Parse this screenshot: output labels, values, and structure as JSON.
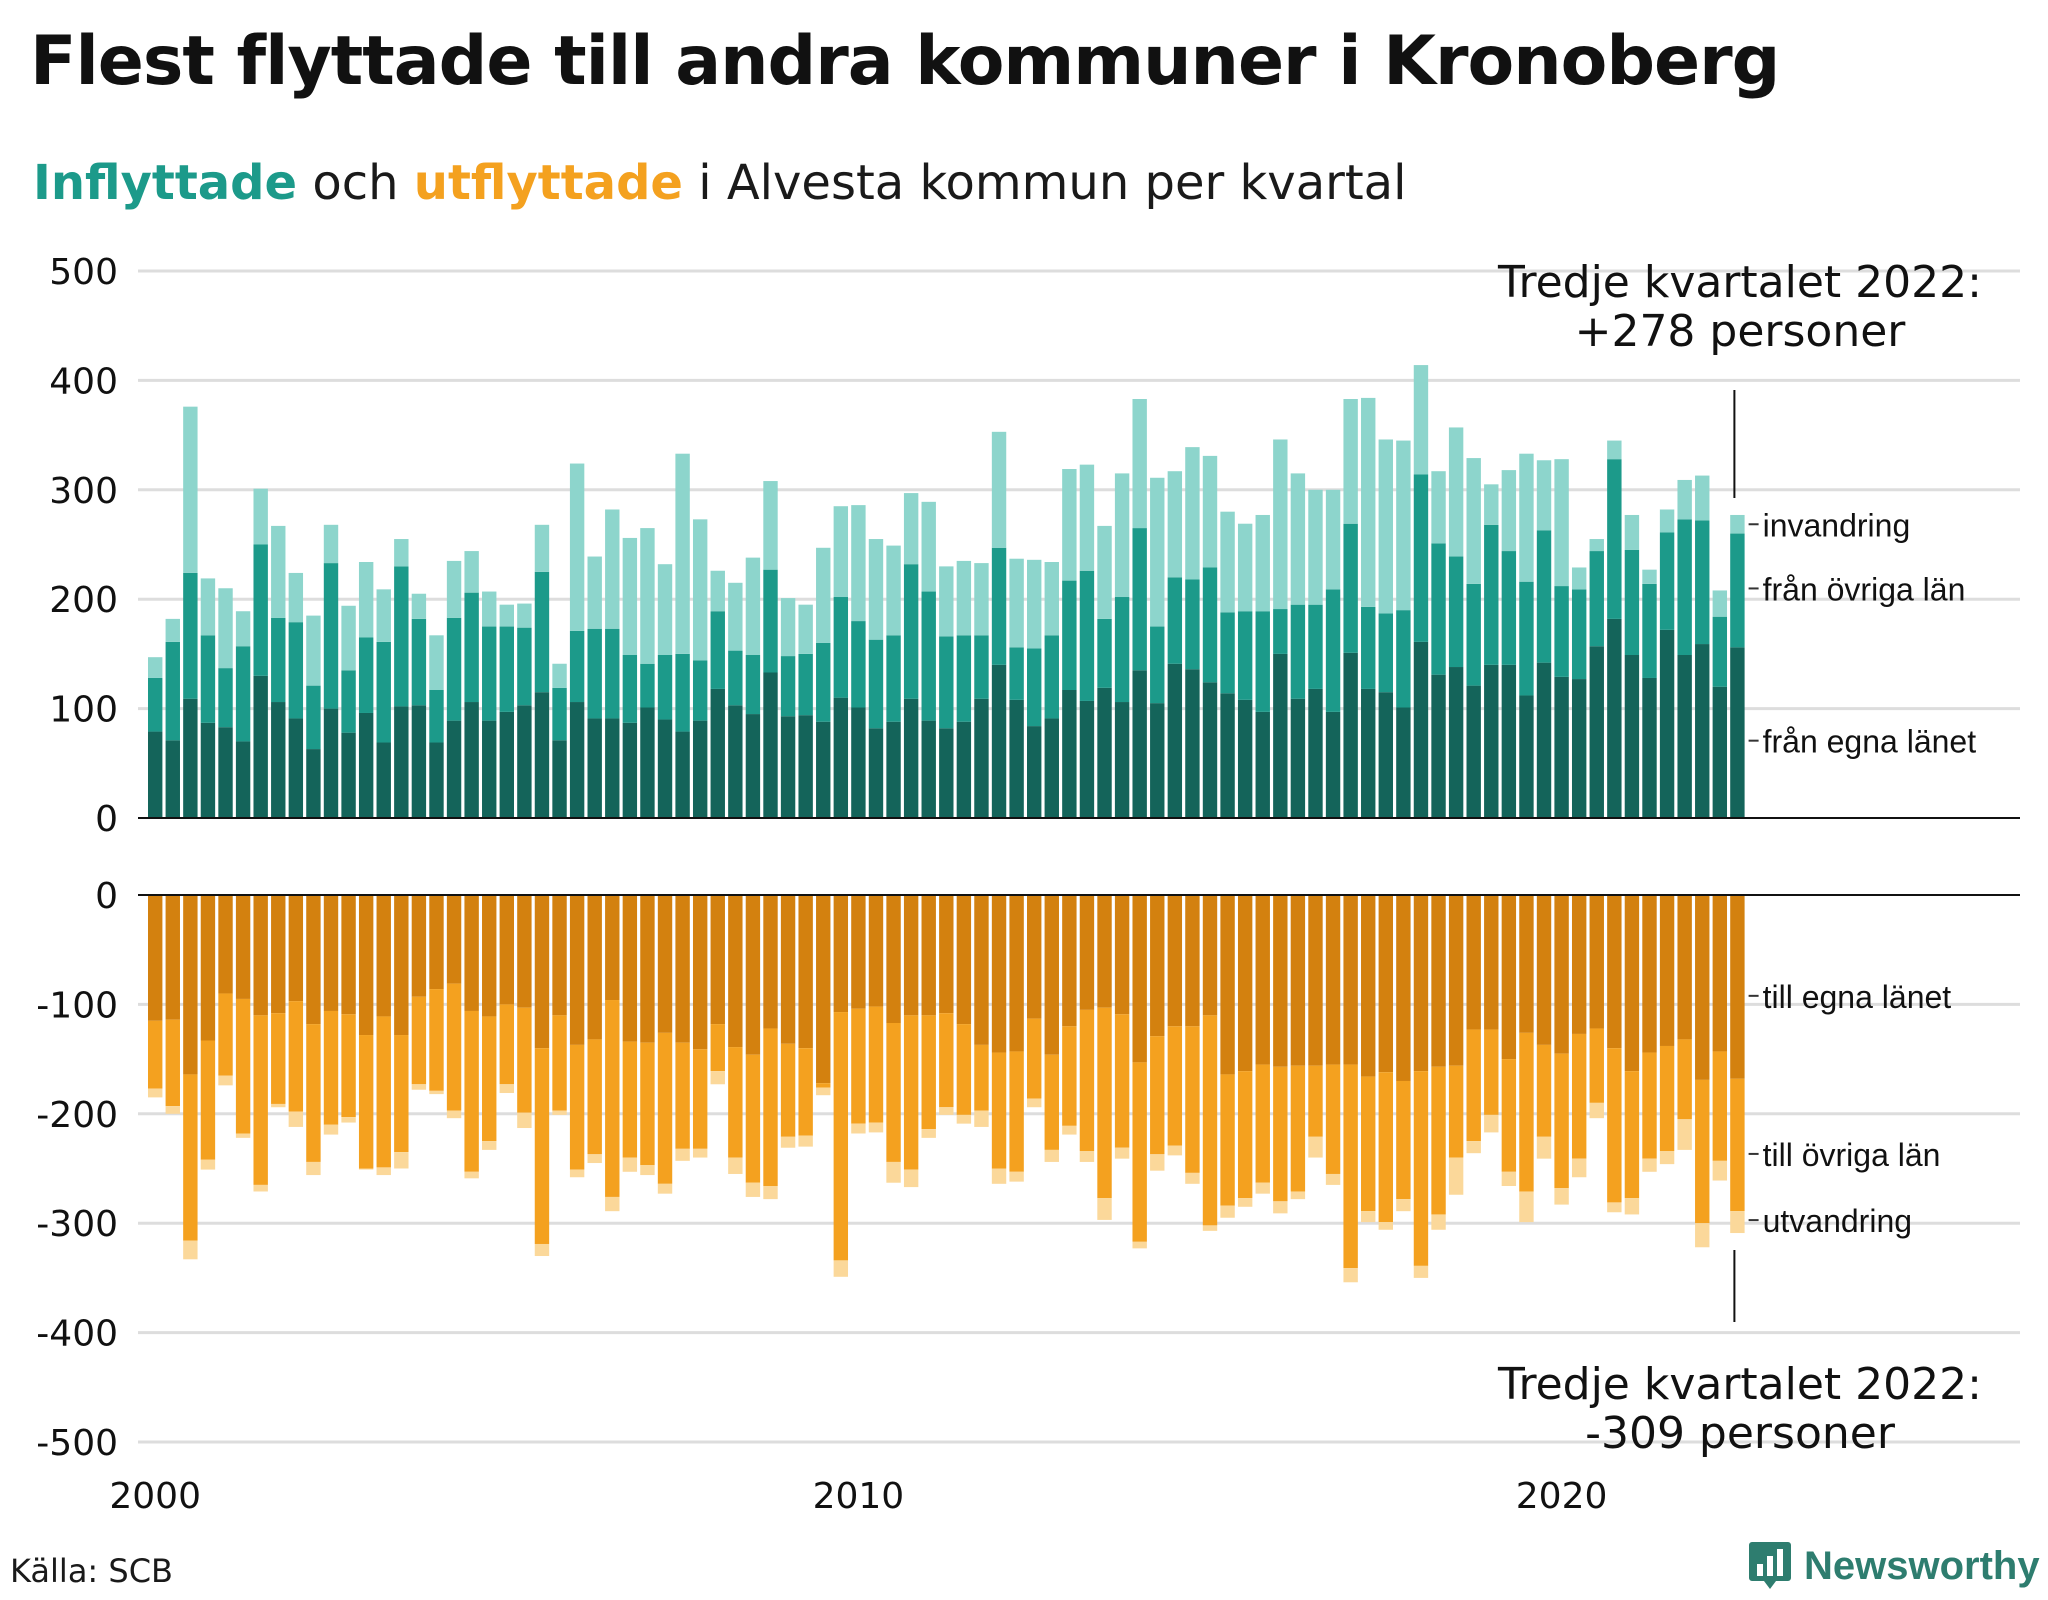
{
  "title": "Flest flyttade till andra kommuner i Kronoberg",
  "subtitle": {
    "part1": "Inflyttade",
    "part2": " och ",
    "part3": "utflyttade",
    "part4": " i Alvesta kommun per kvartal"
  },
  "source": "Källa: SCB",
  "brand": "Newsworthy",
  "colors": {
    "in_own": "#14645a",
    "in_other": "#1c9a8a",
    "in_imm": "#8dd5cc",
    "out_own": "#d3810f",
    "out_other": "#f4a11f",
    "out_emi": "#fbd89a",
    "grid": "#dddddd",
    "text": "#111111",
    "brand": "#2e7d6f"
  },
  "annotations": {
    "top_line1": "Tredje kvartalet 2022:",
    "top_line2": "+278 personer",
    "bottom_line1": "Tredje kvartalet 2022:",
    "bottom_line2": "-309 personer"
  },
  "chart_data": [
    {
      "type": "bar",
      "stacked": true,
      "x_start": "2000 Q1",
      "x_end": "2022 Q3",
      "x_ticks": [
        "2000",
        "2010",
        "2020"
      ],
      "y_ticks": [
        "500",
        "400",
        "300",
        "200",
        "100",
        "0"
      ],
      "ylim": [
        0,
        500
      ],
      "series_labels": [
        "invandring",
        "från övriga län",
        "från egna länet"
      ],
      "series": [
        {
          "name": "från egna länet",
          "values": [
            79,
            71,
            109,
            87,
            83,
            70,
            130,
            106,
            91,
            63,
            100,
            78,
            96,
            69,
            102,
            103,
            69,
            89,
            106,
            89,
            97,
            103,
            115,
            71,
            106,
            91,
            91,
            87,
            101,
            90,
            79,
            89,
            118,
            103,
            95,
            133,
            93,
            94,
            88,
            110,
            101,
            82,
            88,
            109,
            89,
            82,
            88,
            109,
            140,
            108,
            84,
            91,
            117,
            107,
            119,
            106,
            135,
            105,
            141,
            136,
            124,
            114,
            108,
            97,
            150,
            109,
            118,
            97,
            151,
            118,
            115,
            101,
            161,
            131,
            138,
            121,
            140,
            140,
            112,
            142,
            129,
            127,
            157,
            182,
            149,
            128,
            172,
            149,
            159,
            120,
            156
          ]
        },
        {
          "name": "från övriga län",
          "values": [
            49,
            90,
            115,
            80,
            54,
            87,
            120,
            77,
            88,
            58,
            133,
            57,
            69,
            92,
            128,
            79,
            48,
            94,
            100,
            86,
            78,
            71,
            110,
            48,
            65,
            82,
            82,
            62,
            40,
            59,
            71,
            55,
            71,
            50,
            54,
            94,
            55,
            56,
            72,
            92,
            79,
            81,
            79,
            123,
            118,
            84,
            79,
            58,
            107,
            48,
            71,
            76,
            100,
            119,
            63,
            96,
            130,
            70,
            79,
            82,
            105,
            74,
            81,
            92,
            41,
            86,
            77,
            112,
            118,
            75,
            72,
            89,
            153,
            120,
            101,
            93,
            128,
            104,
            104,
            121,
            83,
            82,
            87,
            146,
            96,
            86,
            89,
            124,
            113,
            64,
            104
          ]
        },
        {
          "name": "invandring",
          "values": [
            19,
            21,
            152,
            52,
            73,
            32,
            51,
            84,
            45,
            64,
            35,
            59,
            69,
            48,
            25,
            23,
            50,
            52,
            38,
            32,
            20,
            22,
            43,
            22,
            153,
            66,
            109,
            107,
            124,
            83,
            183,
            129,
            37,
            62,
            89,
            81,
            53,
            45,
            87,
            83,
            106,
            92,
            82,
            65,
            82,
            64,
            68,
            66,
            106,
            81,
            81,
            67,
            102,
            97,
            85,
            113,
            118,
            136,
            97,
            121,
            102,
            92,
            80,
            88,
            155,
            120,
            105,
            91,
            114,
            191,
            159,
            155,
            100,
            66,
            118,
            115,
            37,
            74,
            117,
            64,
            116,
            20,
            11,
            17,
            32,
            13,
            21,
            36,
            41,
            24,
            17
          ]
        }
      ]
    },
    {
      "type": "bar",
      "stacked": true,
      "x_start": "2000 Q1",
      "x_end": "2022 Q3",
      "x_ticks": [
        "2000",
        "2010",
        "2020"
      ],
      "y_ticks": [
        "0",
        "-100",
        "-200",
        "-300",
        "-400",
        "-500"
      ],
      "ylim": [
        -500,
        0
      ],
      "series_labels": [
        "till egna länet",
        "till övriga län",
        "utvandring"
      ],
      "series": [
        {
          "name": "till egna länet",
          "values": [
            -115,
            -114,
            -164,
            -133,
            -90,
            -95,
            -110,
            -108,
            -97,
            -118,
            -106,
            -109,
            -128,
            -111,
            -128,
            -93,
            -86,
            -81,
            -106,
            -111,
            -100,
            -103,
            -140,
            -110,
            -137,
            -132,
            -96,
            -134,
            -135,
            -126,
            -135,
            -141,
            -118,
            -139,
            -146,
            -122,
            -136,
            -140,
            -172,
            -107,
            -104,
            -102,
            -117,
            -110,
            -110,
            -108,
            -118,
            -137,
            -144,
            -143,
            -113,
            -146,
            -120,
            -105,
            -103,
            -109,
            -153,
            -129,
            -120,
            -120,
            -110,
            -164,
            -161,
            -155,
            -157,
            -156,
            -156,
            -155,
            -155,
            -166,
            -162,
            -170,
            -161,
            -157,
            -156,
            -123,
            -123,
            -150,
            -126,
            -137,
            -145,
            -127,
            -122,
            -140,
            -161,
            -144,
            -138,
            -132,
            -169,
            -143,
            -168
          ]
        },
        {
          "name": "till övriga län",
          "values": [
            -62,
            -79,
            -152,
            -109,
            -75,
            -123,
            -155,
            -83,
            -101,
            -126,
            -104,
            -94,
            -122,
            -138,
            -107,
            -80,
            -93,
            -116,
            -147,
            -114,
            -73,
            -96,
            -179,
            -87,
            -114,
            -105,
            -180,
            -106,
            -112,
            -138,
            -97,
            -91,
            -43,
            -101,
            -117,
            -144,
            -85,
            -80,
            -4,
            -227,
            -105,
            -106,
            -127,
            -141,
            -104,
            -86,
            -83,
            -60,
            -106,
            -110,
            -73,
            -87,
            -91,
            -129,
            -174,
            -122,
            -164,
            -108,
            -109,
            -134,
            -192,
            -120,
            -116,
            -108,
            -123,
            -115,
            -65,
            -100,
            -186,
            -123,
            -137,
            -108,
            -178,
            -135,
            -84,
            -102,
            -78,
            -103,
            -145,
            -84,
            -123,
            -114,
            -68,
            -141,
            -116,
            -97,
            -96,
            -73,
            -131,
            -100,
            -121
          ]
        },
        {
          "name": "utvandring",
          "values": [
            -8,
            -7,
            -17,
            -9,
            -9,
            -4,
            -6,
            -3,
            -14,
            -12,
            -9,
            -5,
            -1,
            -7,
            -15,
            -5,
            -3,
            -7,
            -6,
            -8,
            -8,
            -14,
            -11,
            -4,
            -7,
            -8,
            -13,
            -13,
            -9,
            -9,
            -11,
            -8,
            -12,
            -15,
            -13,
            -12,
            -10,
            -10,
            -7,
            -15,
            -9,
            -9,
            -19,
            -16,
            -8,
            -7,
            -8,
            -15,
            -14,
            -9,
            -8,
            -11,
            -8,
            -10,
            -20,
            -10,
            -6,
            -15,
            -9,
            -10,
            -5,
            -11,
            -8,
            -10,
            -11,
            -7,
            -19,
            -10,
            -13,
            -10,
            -7,
            -11,
            -11,
            -14,
            -34,
            -11,
            -16,
            -13,
            -28,
            -20,
            -15,
            -17,
            -14,
            -9,
            -15,
            -12,
            -12,
            -28,
            -22,
            -18,
            -20
          ]
        }
      ]
    }
  ]
}
